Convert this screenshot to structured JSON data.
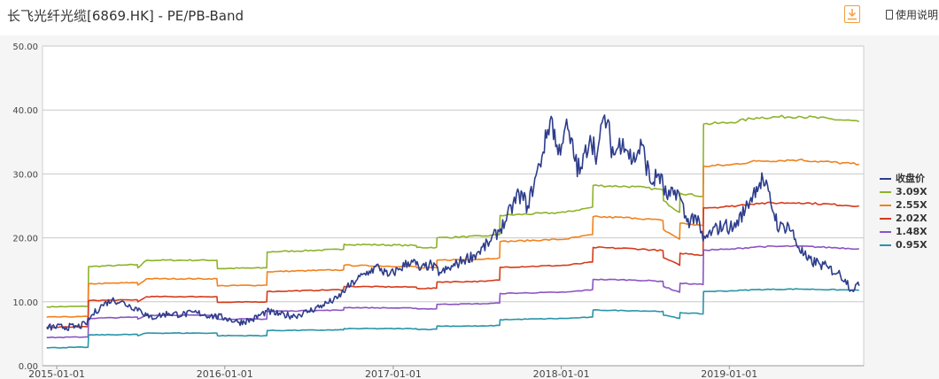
{
  "header": {
    "title": "长飞光纤光缆[6869.HK] - PE/PB-Band",
    "help_label": "使用说明"
  },
  "chart_data": {
    "type": "line",
    "title": "",
    "xlabel": "",
    "ylabel": "",
    "ylim": [
      0,
      50
    ],
    "yticks": [
      "0.00",
      "10.00",
      "20.00",
      "30.00",
      "40.00",
      "50.00"
    ],
    "xticks": [
      "2015-01-01",
      "2016-01-01",
      "2017-01-01",
      "2018-01-01",
      "2019-01-01"
    ],
    "grid": true,
    "legend_position": "right",
    "series": [
      {
        "name": "收盘价",
        "color": "#2e3d8c",
        "points": [
          [
            "2014-12-10",
            6.0
          ],
          [
            "2015-02-15",
            6.1
          ],
          [
            "2015-03-05",
            6.5
          ],
          [
            "2015-03-20",
            8.0
          ],
          [
            "2015-04-10",
            9.5
          ],
          [
            "2015-05-01",
            10.3
          ],
          [
            "2015-05-20",
            10.0
          ],
          [
            "2015-06-10",
            9.3
          ],
          [
            "2015-07-01",
            8.8
          ],
          [
            "2015-07-20",
            7.5
          ],
          [
            "2015-08-10",
            7.8
          ],
          [
            "2015-09-01",
            8.2
          ],
          [
            "2015-10-01",
            8.0
          ],
          [
            "2015-11-01",
            8.3
          ],
          [
            "2015-12-01",
            7.8
          ],
          [
            "2016-01-01",
            7.5
          ],
          [
            "2016-02-01",
            6.8
          ],
          [
            "2016-03-01",
            7.2
          ],
          [
            "2016-04-01",
            8.5
          ],
          [
            "2016-05-01",
            8.0
          ],
          [
            "2016-06-01",
            7.8
          ],
          [
            "2016-07-01",
            8.5
          ],
          [
            "2016-08-01",
            9.5
          ],
          [
            "2016-09-01",
            10.5
          ],
          [
            "2016-09-20",
            12.0
          ],
          [
            "2016-10-15",
            13.5
          ],
          [
            "2016-11-10",
            14.8
          ],
          [
            "2016-12-01",
            15.5
          ],
          [
            "2016-12-20",
            14.0
          ],
          [
            "2017-01-15",
            15.2
          ],
          [
            "2017-02-10",
            16.5
          ],
          [
            "2017-03-01",
            15.0
          ],
          [
            "2017-03-20",
            15.8
          ],
          [
            "2017-04-15",
            14.5
          ],
          [
            "2017-05-10",
            15.5
          ],
          [
            "2017-06-01",
            16.5
          ],
          [
            "2017-07-01",
            17.5
          ],
          [
            "2017-08-01",
            19.5
          ],
          [
            "2017-09-01",
            22.5
          ],
          [
            "2017-10-01",
            27.0
          ],
          [
            "2017-10-20",
            25.0
          ],
          [
            "2017-11-15",
            31.5
          ],
          [
            "2017-12-10",
            39.0
          ],
          [
            "2017-12-25",
            33.0
          ],
          [
            "2018-01-10",
            37.5
          ],
          [
            "2018-02-10",
            30.0
          ],
          [
            "2018-03-05",
            36.0
          ],
          [
            "2018-03-20",
            33.0
          ],
          [
            "2018-04-05",
            39.2
          ],
          [
            "2018-04-25",
            33.0
          ],
          [
            "2018-05-15",
            35.5
          ],
          [
            "2018-06-05",
            32.0
          ],
          [
            "2018-06-25",
            34.5
          ],
          [
            "2018-07-15",
            28.5
          ],
          [
            "2018-08-01",
            30.0
          ],
          [
            "2018-08-20",
            26.0
          ],
          [
            "2018-09-10",
            27.5
          ],
          [
            "2018-10-01",
            22.5
          ],
          [
            "2018-10-20",
            23.5
          ],
          [
            "2018-11-05",
            19.5
          ],
          [
            "2018-11-25",
            21.0
          ],
          [
            "2018-12-20",
            22.0
          ],
          [
            "2019-01-10",
            21.5
          ],
          [
            "2019-02-05",
            24.5
          ],
          [
            "2019-03-01",
            28.0
          ],
          [
            "2019-03-15",
            29.2
          ],
          [
            "2019-04-01",
            25.5
          ],
          [
            "2019-04-20",
            21.5
          ],
          [
            "2019-05-10",
            22.0
          ],
          [
            "2019-06-01",
            18.5
          ],
          [
            "2019-06-20",
            16.5
          ],
          [
            "2019-07-15",
            16.0
          ],
          [
            "2019-08-05",
            15.2
          ],
          [
            "2019-08-25",
            14.5
          ],
          [
            "2019-09-10",
            13.5
          ],
          [
            "2019-09-25",
            11.8
          ],
          [
            "2019-10-05",
            12.8
          ],
          [
            "2019-10-10",
            12.5
          ]
        ]
      },
      {
        "name": "3.09X",
        "color": "#8db32a",
        "points": [
          [
            "2014-12-10",
            9.2
          ],
          [
            "2015-03-10",
            9.3
          ],
          [
            "2015-03-11",
            15.5
          ],
          [
            "2015-06-25",
            15.8
          ],
          [
            "2015-06-26",
            15.3
          ],
          [
            "2015-07-15",
            16.5
          ],
          [
            "2015-12-15",
            16.5
          ],
          [
            "2015-12-16",
            15.2
          ],
          [
            "2016-04-01",
            15.3
          ],
          [
            "2016-04-02",
            17.8
          ],
          [
            "2016-09-15",
            18.2
          ],
          [
            "2016-09-16",
            19.0
          ],
          [
            "2017-02-20",
            18.8
          ],
          [
            "2017-02-21",
            18.5
          ],
          [
            "2017-04-05",
            18.5
          ],
          [
            "2017-04-06",
            20.0
          ],
          [
            "2017-07-20",
            20.3
          ],
          [
            "2017-08-20",
            20.5
          ],
          [
            "2017-08-21",
            23.5
          ],
          [
            "2018-01-10",
            24.0
          ],
          [
            "2018-03-10",
            24.8
          ],
          [
            "2018-03-11",
            28.2
          ],
          [
            "2018-06-10",
            28.0
          ],
          [
            "2018-08-10",
            27.5
          ],
          [
            "2018-08-11",
            25.8
          ],
          [
            "2018-09-15",
            24.0
          ],
          [
            "2018-09-16",
            27.0
          ],
          [
            "2018-11-05",
            26.5
          ],
          [
            "2018-11-06",
            37.8
          ],
          [
            "2019-01-01",
            38.0
          ],
          [
            "2019-03-01",
            38.8
          ],
          [
            "2019-06-01",
            39.0
          ],
          [
            "2019-10-10",
            38.2
          ]
        ]
      },
      {
        "name": "2.55X",
        "color": "#f0821e",
        "points": [
          [
            "2014-12-10",
            7.6
          ],
          [
            "2015-03-10",
            7.7
          ],
          [
            "2015-03-11",
            12.8
          ],
          [
            "2015-06-25",
            13.0
          ],
          [
            "2015-06-26",
            12.6
          ],
          [
            "2015-07-15",
            13.6
          ],
          [
            "2015-12-15",
            13.6
          ],
          [
            "2015-12-16",
            12.5
          ],
          [
            "2016-04-01",
            12.6
          ],
          [
            "2016-04-02",
            14.7
          ],
          [
            "2016-09-15",
            15.0
          ],
          [
            "2016-09-16",
            15.7
          ],
          [
            "2017-02-20",
            15.5
          ],
          [
            "2017-02-21",
            15.3
          ],
          [
            "2017-04-05",
            15.3
          ],
          [
            "2017-04-06",
            16.5
          ],
          [
            "2017-07-20",
            16.7
          ],
          [
            "2017-08-20",
            16.9
          ],
          [
            "2017-08-21",
            19.4
          ],
          [
            "2018-01-10",
            19.8
          ],
          [
            "2018-03-10",
            20.5
          ],
          [
            "2018-03-11",
            23.3
          ],
          [
            "2018-06-10",
            23.1
          ],
          [
            "2018-08-10",
            22.7
          ],
          [
            "2018-08-11",
            21.3
          ],
          [
            "2018-09-15",
            19.8
          ],
          [
            "2018-09-16",
            22.3
          ],
          [
            "2018-11-05",
            21.9
          ],
          [
            "2018-11-06",
            31.2
          ],
          [
            "2019-01-01",
            31.4
          ],
          [
            "2019-03-01",
            32.0
          ],
          [
            "2019-06-01",
            32.2
          ],
          [
            "2019-10-10",
            31.5
          ]
        ]
      },
      {
        "name": "2.02X",
        "color": "#d43c1c",
        "points": [
          [
            "2014-12-10",
            6.0
          ],
          [
            "2015-03-10",
            6.1
          ],
          [
            "2015-03-11",
            10.2
          ],
          [
            "2015-06-25",
            10.3
          ],
          [
            "2015-06-26",
            10.0
          ],
          [
            "2015-07-15",
            10.8
          ],
          [
            "2015-12-15",
            10.8
          ],
          [
            "2015-12-16",
            9.9
          ],
          [
            "2016-04-01",
            10.0
          ],
          [
            "2016-04-02",
            11.6
          ],
          [
            "2016-09-15",
            11.9
          ],
          [
            "2016-09-16",
            12.4
          ],
          [
            "2017-02-20",
            12.3
          ],
          [
            "2017-02-21",
            12.1
          ],
          [
            "2017-04-05",
            12.1
          ],
          [
            "2017-04-06",
            13.1
          ],
          [
            "2017-07-20",
            13.2
          ],
          [
            "2017-08-20",
            13.4
          ],
          [
            "2017-08-21",
            15.4
          ],
          [
            "2018-01-10",
            15.7
          ],
          [
            "2018-03-10",
            16.2
          ],
          [
            "2018-03-11",
            18.5
          ],
          [
            "2018-06-10",
            18.3
          ],
          [
            "2018-08-10",
            18.0
          ],
          [
            "2018-08-11",
            16.9
          ],
          [
            "2018-09-15",
            15.7
          ],
          [
            "2018-09-16",
            17.6
          ],
          [
            "2018-11-05",
            17.3
          ],
          [
            "2018-11-06",
            24.7
          ],
          [
            "2019-01-01",
            24.9
          ],
          [
            "2019-03-01",
            25.4
          ],
          [
            "2019-06-01",
            25.5
          ],
          [
            "2019-10-10",
            25.0
          ]
        ]
      },
      {
        "name": "1.48X",
        "color": "#8a55c2",
        "points": [
          [
            "2014-12-10",
            4.4
          ],
          [
            "2015-03-10",
            4.5
          ],
          [
            "2015-03-11",
            7.4
          ],
          [
            "2015-06-25",
            7.6
          ],
          [
            "2015-06-26",
            7.3
          ],
          [
            "2015-07-15",
            7.9
          ],
          [
            "2015-12-15",
            7.9
          ],
          [
            "2015-12-16",
            7.3
          ],
          [
            "2016-04-01",
            7.3
          ],
          [
            "2016-04-02",
            8.5
          ],
          [
            "2016-09-15",
            8.7
          ],
          [
            "2016-09-16",
            9.1
          ],
          [
            "2017-02-20",
            9.0
          ],
          [
            "2017-02-21",
            8.9
          ],
          [
            "2017-04-05",
            8.9
          ],
          [
            "2017-04-06",
            9.6
          ],
          [
            "2017-07-20",
            9.7
          ],
          [
            "2017-08-20",
            9.8
          ],
          [
            "2017-08-21",
            11.3
          ],
          [
            "2018-01-10",
            11.5
          ],
          [
            "2018-03-10",
            11.9
          ],
          [
            "2018-03-11",
            13.5
          ],
          [
            "2018-06-10",
            13.4
          ],
          [
            "2018-08-10",
            13.2
          ],
          [
            "2018-08-11",
            12.4
          ],
          [
            "2018-09-15",
            11.5
          ],
          [
            "2018-09-16",
            12.9
          ],
          [
            "2018-11-05",
            12.7
          ],
          [
            "2018-11-06",
            18.1
          ],
          [
            "2019-01-01",
            18.2
          ],
          [
            "2019-03-01",
            18.6
          ],
          [
            "2019-06-01",
            18.7
          ],
          [
            "2019-10-10",
            18.3
          ]
        ]
      },
      {
        "name": "0.95X",
        "color": "#2894a8",
        "points": [
          [
            "2014-12-10",
            2.8
          ],
          [
            "2015-03-10",
            2.9
          ],
          [
            "2015-03-11",
            4.8
          ],
          [
            "2015-06-25",
            4.9
          ],
          [
            "2015-06-26",
            4.7
          ],
          [
            "2015-07-15",
            5.1
          ],
          [
            "2015-12-15",
            5.1
          ],
          [
            "2015-12-16",
            4.7
          ],
          [
            "2016-04-01",
            4.7
          ],
          [
            "2016-04-02",
            5.5
          ],
          [
            "2016-09-15",
            5.6
          ],
          [
            "2016-09-16",
            5.8
          ],
          [
            "2017-02-20",
            5.8
          ],
          [
            "2017-02-21",
            5.7
          ],
          [
            "2017-04-05",
            5.7
          ],
          [
            "2017-04-06",
            6.2
          ],
          [
            "2017-07-20",
            6.2
          ],
          [
            "2017-08-20",
            6.3
          ],
          [
            "2017-08-21",
            7.2
          ],
          [
            "2018-01-10",
            7.4
          ],
          [
            "2018-03-10",
            7.6
          ],
          [
            "2018-03-11",
            8.7
          ],
          [
            "2018-06-10",
            8.6
          ],
          [
            "2018-08-10",
            8.5
          ],
          [
            "2018-08-11",
            7.9
          ],
          [
            "2018-09-15",
            7.4
          ],
          [
            "2018-09-16",
            8.3
          ],
          [
            "2018-11-05",
            8.1
          ],
          [
            "2018-11-06",
            11.6
          ],
          [
            "2019-01-01",
            11.7
          ],
          [
            "2019-03-01",
            11.9
          ],
          [
            "2019-06-01",
            12.0
          ],
          [
            "2019-10-10",
            11.8
          ]
        ]
      }
    ]
  }
}
